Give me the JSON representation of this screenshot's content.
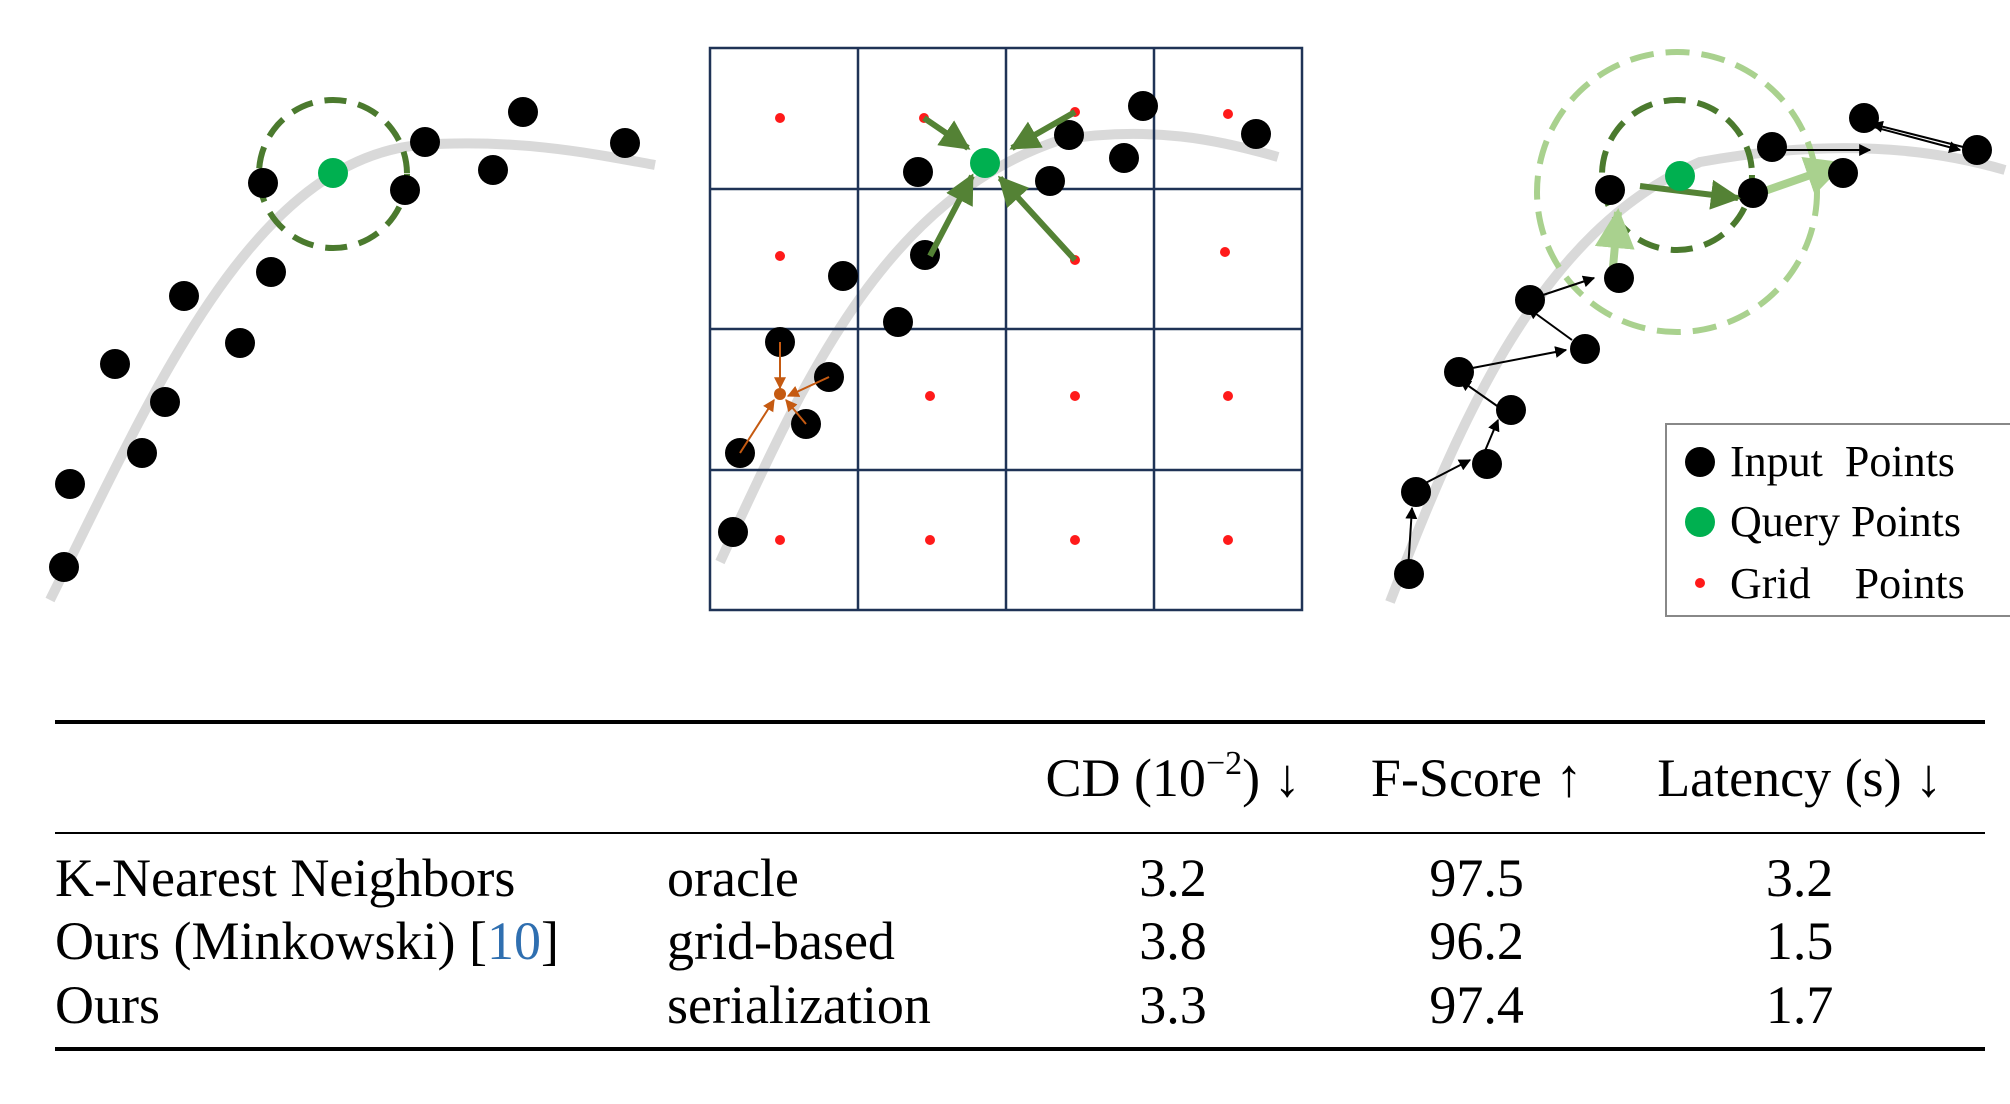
{
  "figure": {
    "legend": {
      "items": [
        {
          "label": "Input  Points",
          "color": "#000000"
        },
        {
          "label": "Query Points",
          "color": "#00b050"
        },
        {
          "label": "Grid    Points",
          "color": "#ff1a1a"
        }
      ]
    },
    "colors": {
      "curve": "#d9d9d9",
      "query_circle": "#4b7a2e",
      "outer_circle": "#a9d18e",
      "grid_lines": "#1f3356",
      "arrow_dark_green": "#548235",
      "arrow_light_green": "#a9d18e",
      "arrow_orange": "#c55a11"
    }
  },
  "table": {
    "headers": {
      "method": "",
      "type": "",
      "cd_label": "CD (10",
      "cd_exp": "−2",
      "cd_tail": ") ↓",
      "fscore": "F-Score ↑",
      "latency": "Latency (s) ↓"
    },
    "rows": [
      {
        "method": "K-Nearest Neighbors",
        "type": "oracle",
        "cd": "3.2",
        "fscore": "97.5",
        "latency": "3.2"
      },
      {
        "method_prefix": "Ours (Minkowski) [",
        "method_cite": "10",
        "method_suffix": "]",
        "type": "grid-based",
        "cd": "3.8",
        "fscore": "96.2",
        "latency": "1.5"
      },
      {
        "method": "Ours",
        "type": "serialization",
        "cd": "3.3",
        "fscore": "97.4",
        "latency": "1.7"
      }
    ]
  }
}
